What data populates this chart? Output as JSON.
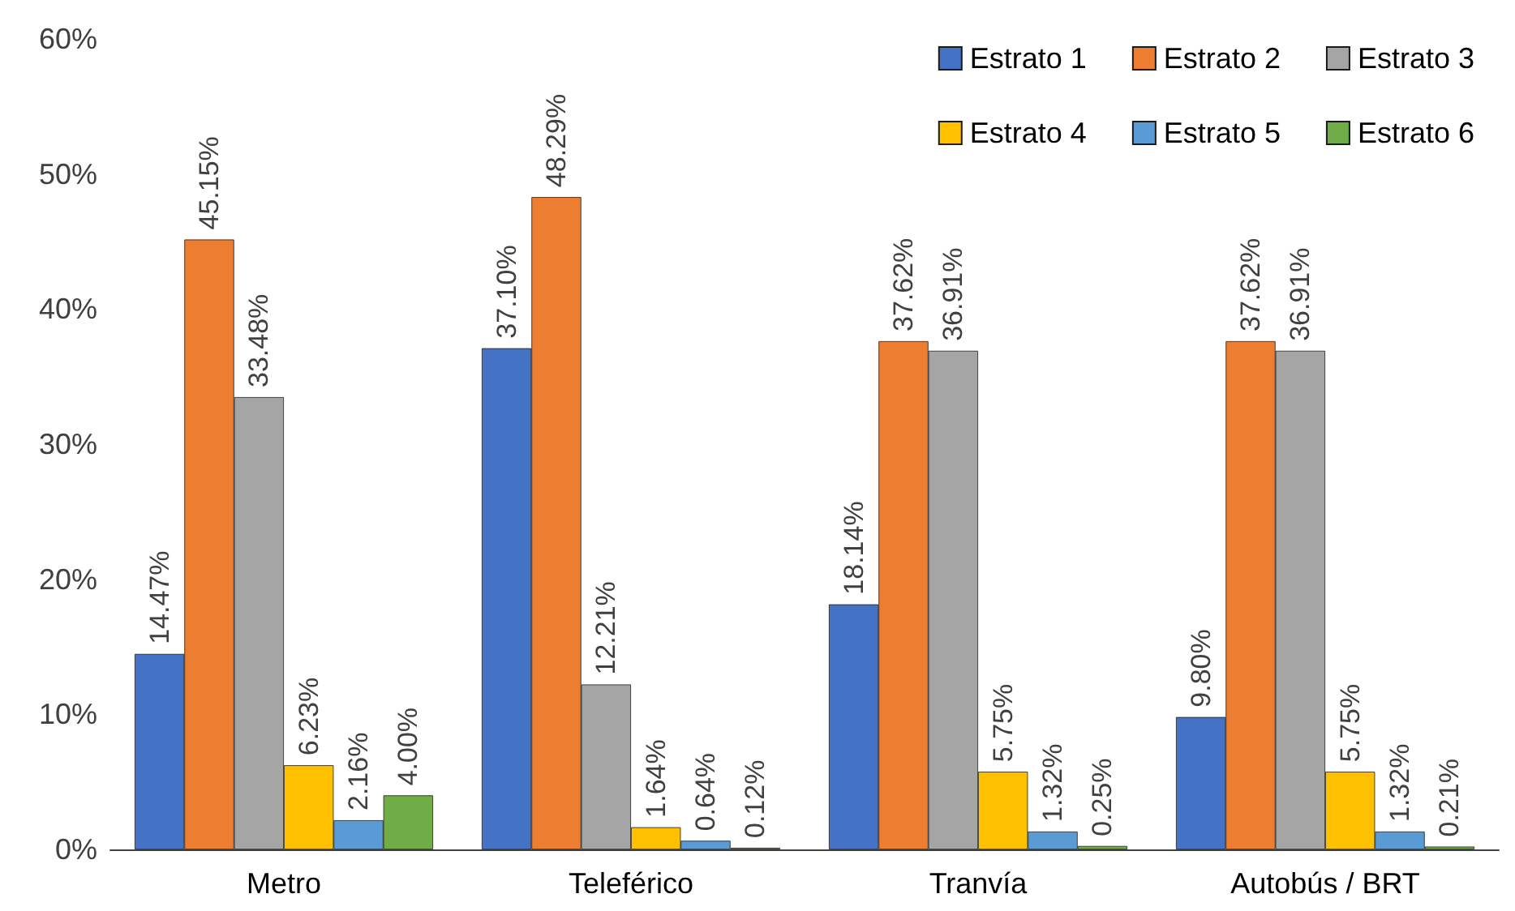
{
  "chart_data": {
    "type": "bar",
    "categories": [
      "Metro",
      "Teleférico",
      "Tranvía",
      "Autobús / BRT"
    ],
    "series": [
      {
        "name": "Estrato 1",
        "color": "#4472c4",
        "values": [
          14.47,
          37.1,
          18.14,
          9.8
        ],
        "value_labels": [
          "14.47%",
          "37.10%",
          "18.14%",
          "9.80%"
        ]
      },
      {
        "name": "Estrato 2",
        "color": "#ed7d31",
        "values": [
          45.15,
          48.29,
          37.62,
          37.62
        ],
        "value_labels": [
          "45.15%",
          "48.29%",
          "37.62%",
          "37.62%"
        ]
      },
      {
        "name": "Estrato 3",
        "color": "#a5a5a5",
        "values": [
          33.48,
          12.21,
          36.91,
          36.91
        ],
        "value_labels": [
          "33.48%",
          "12.21%",
          "36.91%",
          "36.91%"
        ]
      },
      {
        "name": "Estrato 4",
        "color": "#ffc000",
        "values": [
          6.23,
          1.64,
          5.75,
          5.75
        ],
        "value_labels": [
          "6.23%",
          "1.64%",
          "5.75%",
          "5.75%"
        ]
      },
      {
        "name": "Estrato 5",
        "color": "#5b9bd5",
        "values": [
          2.16,
          0.64,
          1.32,
          1.32
        ],
        "value_labels": [
          "2.16%",
          "0.64%",
          "1.32%",
          "1.32%"
        ]
      },
      {
        "name": "Estrato 6",
        "color": "#70ad47",
        "values": [
          4.0,
          0.12,
          0.25,
          0.21
        ],
        "value_labels": [
          "4.00%",
          "0.12%",
          "0.25%",
          "0.21%"
        ]
      }
    ],
    "ylim": [
      0,
      60
    ],
    "yticks": [
      {
        "value": 0,
        "label": "0%"
      },
      {
        "value": 10,
        "label": "10%"
      },
      {
        "value": 20,
        "label": "20%"
      },
      {
        "value": 30,
        "label": "30%"
      },
      {
        "value": 40,
        "label": "40%"
      },
      {
        "value": 50,
        "label": "50%"
      },
      {
        "value": 60,
        "label": "60%"
      }
    ],
    "grid": false,
    "legend": "top right"
  }
}
